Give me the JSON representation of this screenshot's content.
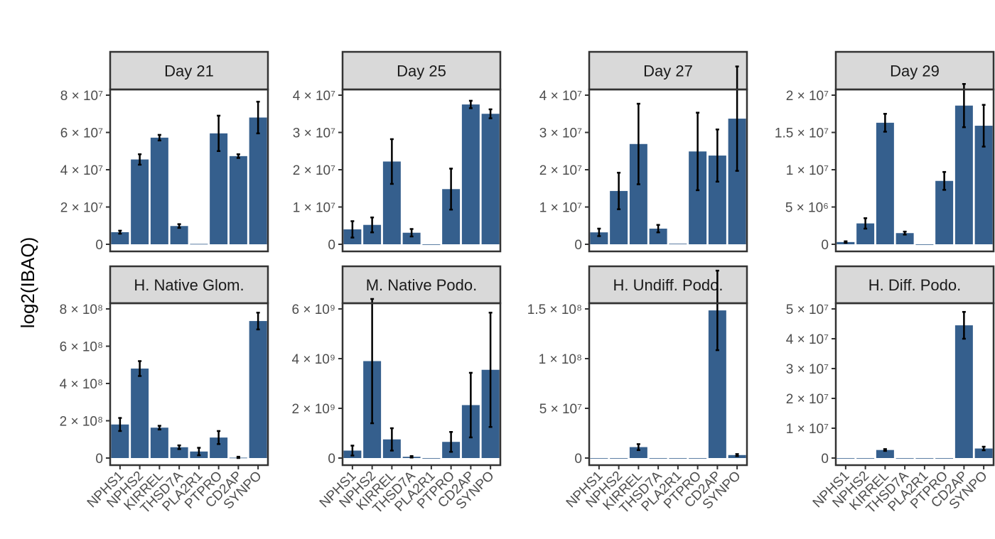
{
  "chart_data": {
    "type": "bar",
    "ylabel": "log2(IBAQ)",
    "categories": [
      "NPHS1",
      "NPHS2",
      "KIRREL",
      "THSD7A",
      "PLA2R1",
      "PTPRO",
      "CD2AP",
      "SYNPO"
    ],
    "colors": {
      "bar": "#355f8d",
      "strip": "#d9d9d9",
      "panel_border": "#333333",
      "errorbar": "#000000"
    },
    "panels": [
      {
        "title": "Day 21",
        "ylim": [
          0,
          80000000
        ],
        "ticks": [
          0,
          20000000,
          40000000,
          60000000,
          80000000
        ],
        "tick_labels": [
          "0",
          "2 × 10⁷",
          "4 × 10⁷",
          "6 × 10⁷",
          "8 × 10⁷"
        ],
        "values": [
          6500000,
          45500000,
          57200000,
          9800000,
          200000,
          59500000,
          47300000,
          68000000
        ],
        "errors": [
          800000,
          2800000,
          1500000,
          1000000,
          0,
          9500000,
          1000000,
          8500000
        ]
      },
      {
        "title": "Day 25",
        "ylim": [
          0,
          40000000
        ],
        "ticks": [
          0,
          10000000,
          20000000,
          30000000,
          40000000
        ],
        "tick_labels": [
          "0",
          "1 × 10⁷",
          "2 × 10⁷",
          "3 × 10⁷",
          "4 × 10⁷"
        ],
        "values": [
          4000000,
          5200000,
          22200000,
          3100000,
          0,
          14800000,
          37500000,
          35000000
        ],
        "errors": [
          2200000,
          2000000,
          6000000,
          1000000,
          0,
          5500000,
          1000000,
          1200000
        ]
      },
      {
        "title": "Day 27",
        "ylim": [
          0,
          40000000
        ],
        "ticks": [
          0,
          10000000,
          20000000,
          30000000,
          40000000
        ],
        "tick_labels": [
          "0",
          "1 × 10⁷",
          "2 × 10⁷",
          "3 × 10⁷",
          "4 × 10⁷"
        ],
        "values": [
          3200000,
          14300000,
          26900000,
          4200000,
          150000,
          24900000,
          23800000,
          33700000
        ],
        "errors": [
          1000000,
          4900000,
          10800000,
          1000000,
          0,
          10400000,
          7000000,
          14000000
        ]
      },
      {
        "title": "Day 29",
        "ylim": [
          0,
          20000000
        ],
        "ticks": [
          0,
          5000000,
          10000000,
          15000000,
          20000000
        ],
        "tick_labels": [
          "0",
          "5 × 10⁶",
          "1 × 10⁷",
          "1.5 × 10⁷",
          "2 × 10⁷"
        ],
        "values": [
          300000,
          2800000,
          16300000,
          1500000,
          0,
          8500000,
          18600000,
          15900000
        ],
        "errors": [
          100000,
          700000,
          1200000,
          200000,
          0,
          1200000,
          2900000,
          2800000
        ]
      },
      {
        "title": "H. Native Glom.",
        "ylim": [
          0,
          800000000
        ],
        "ticks": [
          0,
          200000000,
          400000000,
          600000000,
          800000000
        ],
        "tick_labels": [
          "0",
          "2 × 10⁸",
          "4 × 10⁸",
          "6 × 10⁸",
          "8 × 10⁸"
        ],
        "values": [
          180000000,
          480000000,
          163000000,
          58000000,
          35000000,
          110000000,
          2000000,
          735000000
        ],
        "errors": [
          35000000,
          40000000,
          10000000,
          10000000,
          20000000,
          35000000,
          5000000,
          45000000
        ]
      },
      {
        "title": "M. Native Podo.",
        "ylim": [
          0,
          6000000000
        ],
        "ticks": [
          0,
          2000000000,
          4000000000,
          6000000000
        ],
        "tick_labels": [
          "0",
          "2 × 10⁹",
          "4 × 10⁹",
          "6 × 10⁹"
        ],
        "values": [
          300000000,
          3900000000,
          750000000,
          50000000,
          0,
          650000000,
          2130000000,
          3550000000
        ],
        "errors": [
          200000000,
          2500000000,
          450000000,
          30000000,
          0,
          400000000,
          1300000000,
          2300000000
        ]
      },
      {
        "title": "H. Undiff. Podo.",
        "ylim": [
          0,
          150000000
        ],
        "ticks": [
          0,
          50000000,
          100000000,
          150000000
        ],
        "tick_labels": [
          "0",
          "5 × 10⁷",
          "1 × 10⁸",
          "1.5 × 10⁸"
        ],
        "values": [
          0,
          0,
          11000000,
          0,
          0,
          0,
          148500000,
          3000000
        ],
        "errors": [
          0,
          0,
          3000000,
          0,
          0,
          0,
          40000000,
          1000000
        ]
      },
      {
        "title": "H. Diff. Podo.",
        "ylim": [
          0,
          50000000
        ],
        "ticks": [
          0,
          10000000,
          20000000,
          30000000,
          40000000,
          50000000
        ],
        "tick_labels": [
          "0",
          "1 × 10⁷",
          "2 × 10⁷",
          "3 × 10⁷",
          "4 × 10⁷",
          "5 × 10⁷"
        ],
        "values": [
          0,
          0,
          2700000,
          0,
          0,
          0,
          44500000,
          3200000
        ],
        "errors": [
          0,
          0,
          300000,
          0,
          0,
          0,
          4500000,
          600000
        ]
      }
    ]
  }
}
